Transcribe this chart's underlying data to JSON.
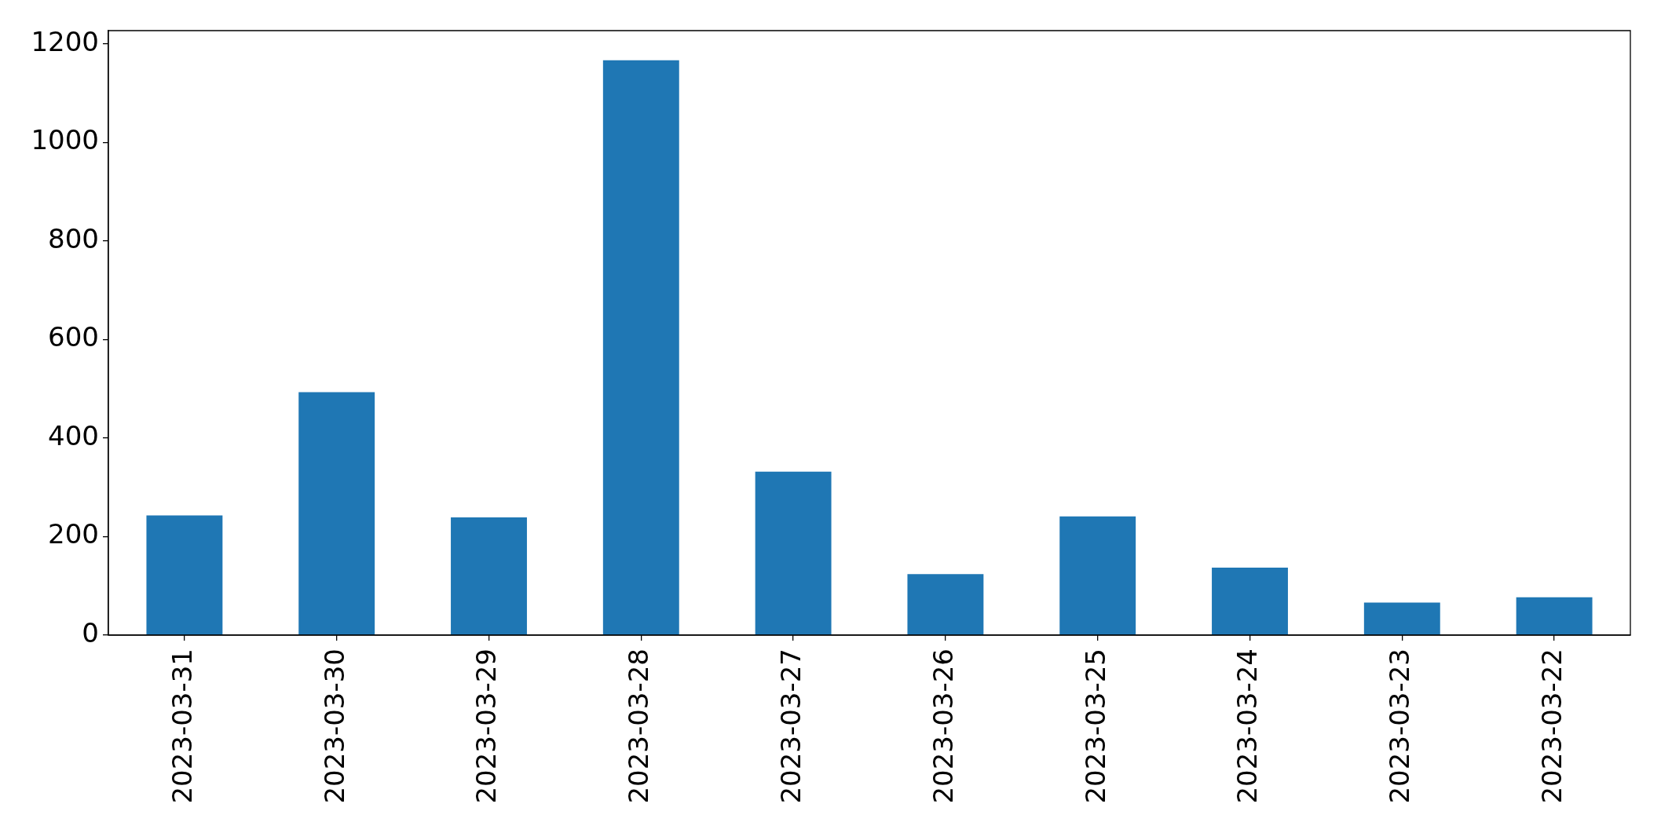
{
  "chart_data": {
    "type": "bar",
    "categories": [
      "2023-03-31",
      "2023-03-30",
      "2023-03-29",
      "2023-03-28",
      "2023-03-27",
      "2023-03-26",
      "2023-03-25",
      "2023-03-24",
      "2023-03-23",
      "2023-03-22"
    ],
    "values": [
      243,
      493,
      239,
      1167,
      332,
      124,
      241,
      137,
      66,
      77
    ],
    "color": "#1f77b4",
    "ylim": [
      0,
      1227
    ],
    "yticks": [
      0,
      200,
      400,
      600,
      800,
      1000,
      1200
    ]
  }
}
